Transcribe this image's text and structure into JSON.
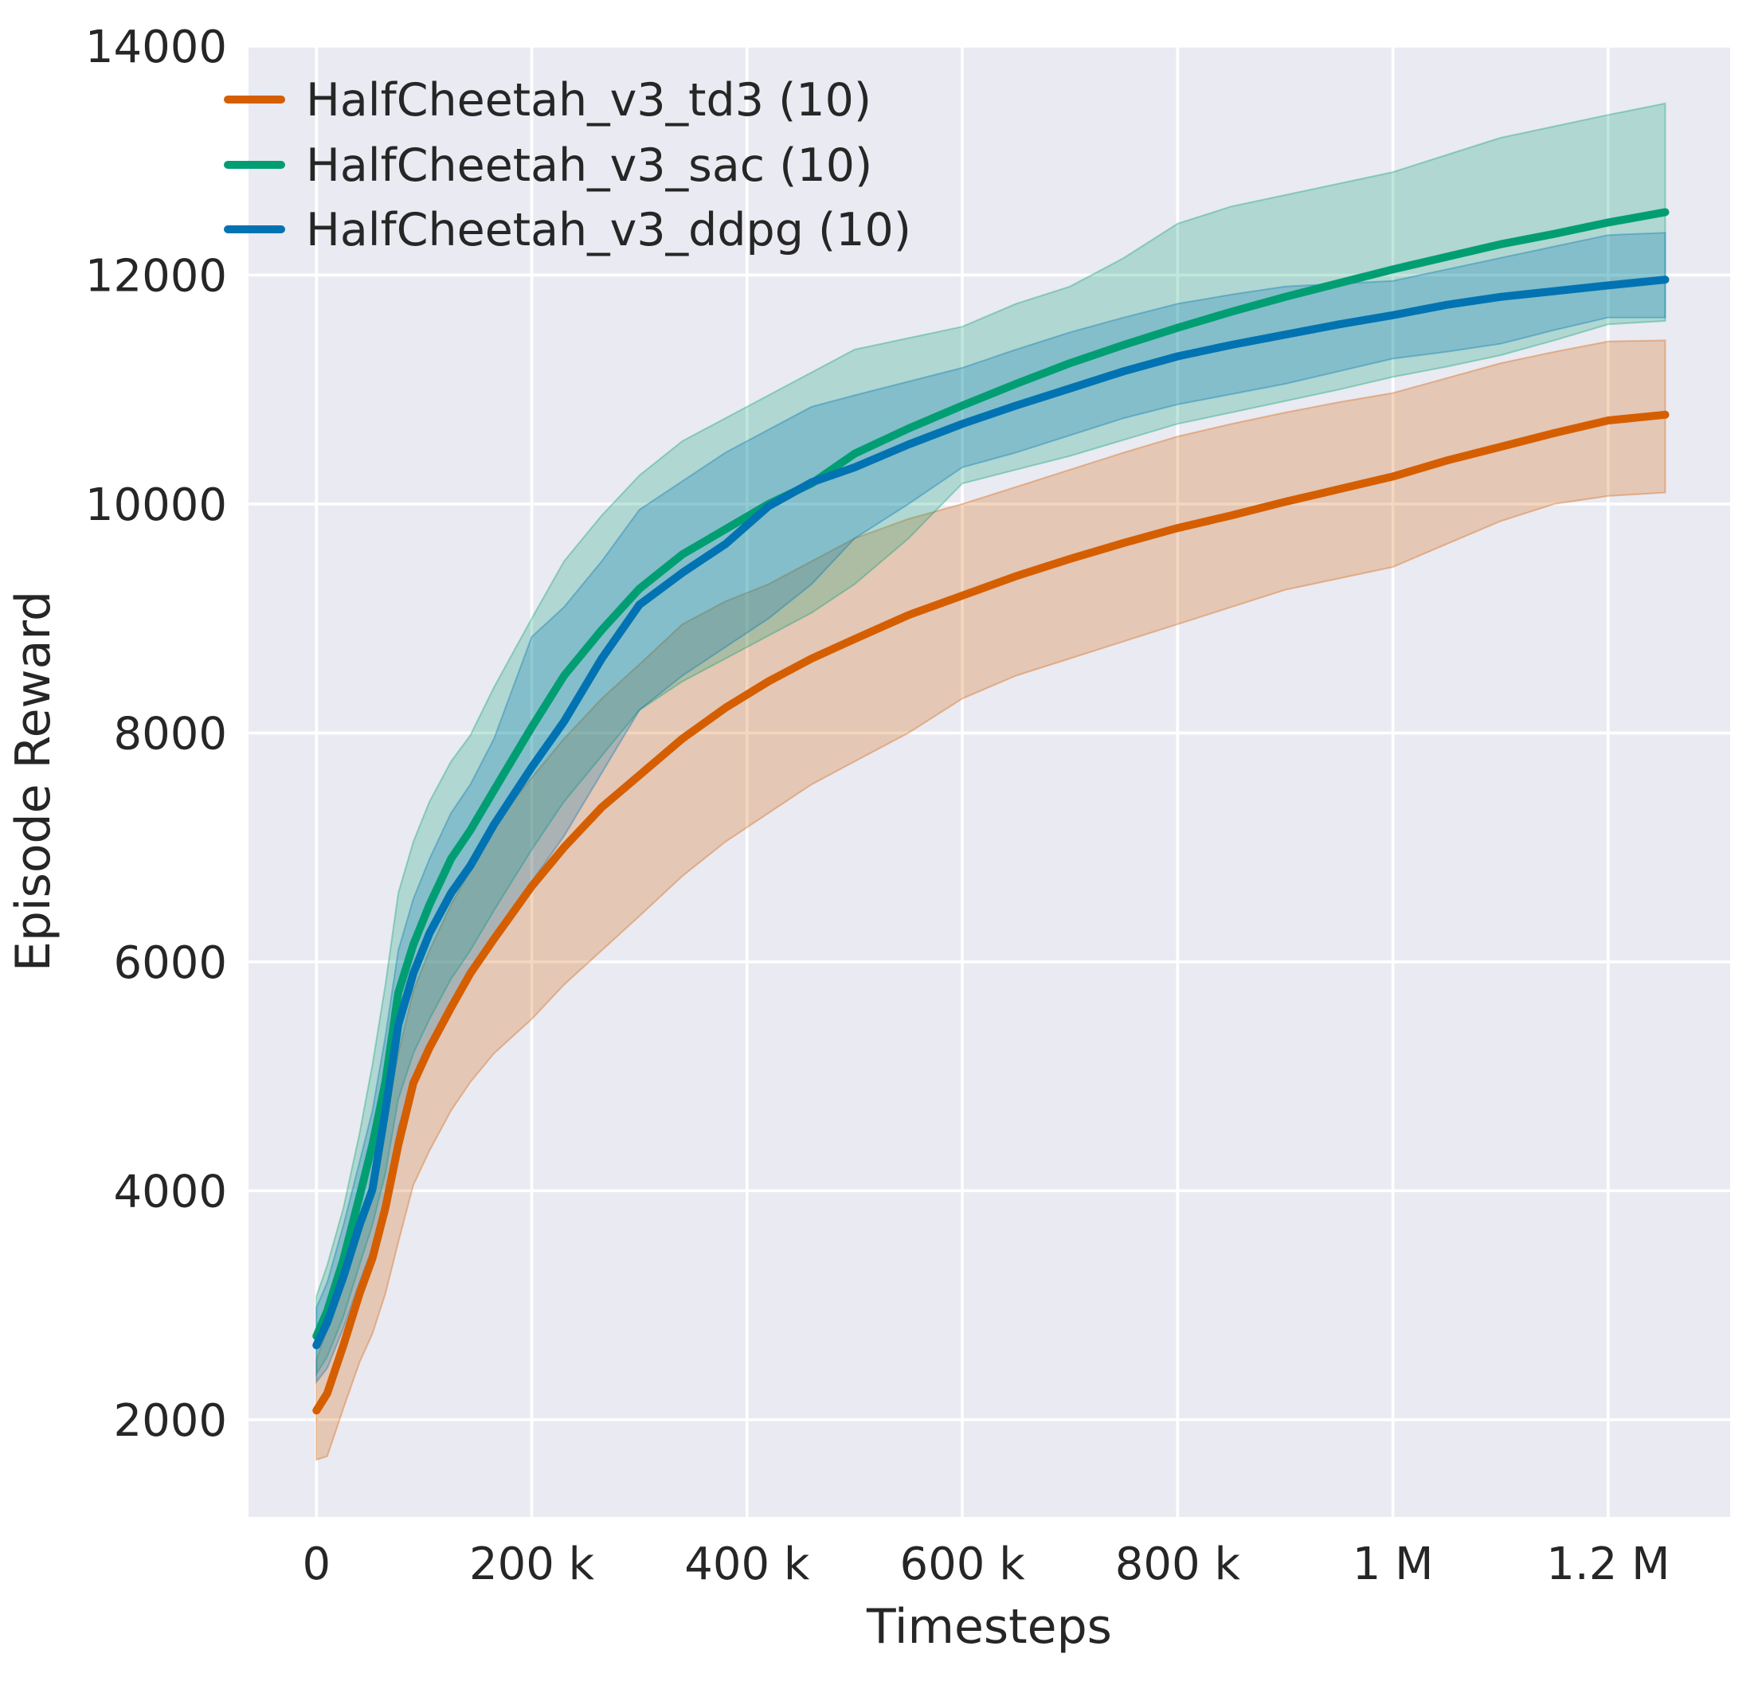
{
  "chart_data": {
    "type": "line",
    "title": "",
    "xlabel": "Timesteps",
    "ylabel": "Episode Reward",
    "grid": true,
    "legend_position": "upper-left",
    "plot_bg_color": "#eaeaf2",
    "grid_color": "#ffffff",
    "text_color": "#262626",
    "figure_bg_color": "#ffffff",
    "xlim": [
      -63100,
      1313300
    ],
    "ylim": [
      1150,
      14000
    ],
    "xticks": [
      {
        "value": 0,
        "label": "0"
      },
      {
        "value": 200000,
        "label": "200 k"
      },
      {
        "value": 400000,
        "label": "400 k"
      },
      {
        "value": 600000,
        "label": "600 k"
      },
      {
        "value": 800000,
        "label": "800 k"
      },
      {
        "value": 1000000,
        "label": "1 M"
      },
      {
        "value": 1200000,
        "label": "1.2 M"
      }
    ],
    "yticks": [
      {
        "value": 2000,
        "label": "2000"
      },
      {
        "value": 4000,
        "label": "4000"
      },
      {
        "value": 6000,
        "label": "6000"
      },
      {
        "value": 8000,
        "label": "8000"
      },
      {
        "value": 10000,
        "label": "10000"
      },
      {
        "value": 12000,
        "label": "12000"
      },
      {
        "value": 14000,
        "label": "14000"
      }
    ],
    "x_steps": [
      0,
      10000,
      25000,
      40000,
      52000,
      64000,
      76000,
      90000,
      105000,
      125000,
      143000,
      165000,
      200000,
      230000,
      265000,
      300000,
      340000,
      380000,
      420000,
      460000,
      500000,
      550000,
      600000,
      650000,
      700000,
      750000,
      800000,
      850000,
      900000,
      950000,
      1000000,
      1050000,
      1100000,
      1150000,
      1200000,
      1253000
    ],
    "series": [
      {
        "key": "td3",
        "name": "HalfCheetah_v3_td3 (10)",
        "color": "#d55e00",
        "y": [
          2080,
          2230,
          2650,
          3100,
          3410,
          3850,
          4400,
          4940,
          5250,
          5600,
          5900,
          6200,
          6660,
          7000,
          7350,
          7630,
          7950,
          8220,
          8450,
          8650,
          8820,
          9030,
          9200,
          9370,
          9520,
          9660,
          9790,
          9900,
          10020,
          10130,
          10240,
          10380,
          10500,
          10620,
          10730,
          10780
        ],
        "band_lo": [
          1650,
          1680,
          2100,
          2500,
          2750,
          3100,
          3550,
          4050,
          4350,
          4700,
          4950,
          5200,
          5500,
          5800,
          6100,
          6400,
          6750,
          7050,
          7300,
          7550,
          7750,
          8000,
          8300,
          8500,
          8650,
          8800,
          8950,
          9100,
          9250,
          9350,
          9450,
          9650,
          9850,
          10000,
          10070,
          10100
        ],
        "band_hi": [
          2520,
          2800,
          3250,
          3750,
          4100,
          4600,
          5200,
          5750,
          6100,
          6500,
          6800,
          7200,
          7610,
          7950,
          8300,
          8600,
          8950,
          9150,
          9300,
          9500,
          9700,
          9870,
          10000,
          10150,
          10300,
          10450,
          10590,
          10700,
          10800,
          10890,
          10970,
          11100,
          11230,
          11330,
          11420,
          11430
        ]
      },
      {
        "key": "sac",
        "name": "HalfCheetah_v3_sac (10)",
        "color": "#029e73",
        "y": [
          2730,
          2950,
          3400,
          3950,
          4400,
          4950,
          5730,
          6150,
          6500,
          6900,
          7150,
          7500,
          8050,
          8500,
          8900,
          9260,
          9560,
          9780,
          10000,
          10180,
          10440,
          10660,
          10860,
          11050,
          11230,
          11390,
          11540,
          11680,
          11810,
          11930,
          12050,
          12160,
          12270,
          12360,
          12460,
          12550
        ],
        "band_lo": [
          2400,
          2550,
          2900,
          3350,
          3700,
          4150,
          4800,
          5200,
          5500,
          5850,
          6100,
          6450,
          6980,
          7400,
          7800,
          8200,
          8450,
          8650,
          8850,
          9050,
          9300,
          9700,
          10180,
          10300,
          10420,
          10560,
          10700,
          10800,
          10900,
          11000,
          11110,
          11200,
          11300,
          11430,
          11570,
          11600
        ],
        "band_hi": [
          3080,
          3350,
          3850,
          4500,
          5100,
          5800,
          6600,
          7050,
          7400,
          7750,
          7980,
          8400,
          9000,
          9500,
          9900,
          10250,
          10550,
          10750,
          10950,
          11150,
          11350,
          11450,
          11550,
          11750,
          11900,
          12150,
          12450,
          12600,
          12700,
          12800,
          12900,
          13050,
          13200,
          13300,
          13400,
          13500
        ]
      },
      {
        "key": "ddpg",
        "name": "HalfCheetah_v3_ddpg (10)",
        "color": "#0173b2",
        "y": [
          2650,
          2850,
          3250,
          3700,
          4010,
          4700,
          5450,
          5900,
          6250,
          6600,
          6840,
          7200,
          7700,
          8100,
          8650,
          9120,
          9400,
          9650,
          9980,
          10190,
          10320,
          10520,
          10700,
          10860,
          11010,
          11160,
          11290,
          11390,
          11480,
          11570,
          11650,
          11740,
          11810,
          11860,
          11910,
          11960
        ],
        "band_lo": [
          2330,
          2450,
          2800,
          3200,
          3500,
          3950,
          4550,
          4950,
          5250,
          5600,
          5850,
          6200,
          6700,
          7100,
          7650,
          8200,
          8500,
          8750,
          9000,
          9300,
          9700,
          10000,
          10320,
          10450,
          10600,
          10750,
          10870,
          10960,
          11050,
          11160,
          11270,
          11330,
          11400,
          11520,
          11630,
          11630
        ],
        "band_hi": [
          2980,
          3200,
          3700,
          4250,
          4700,
          5350,
          6100,
          6550,
          6900,
          7300,
          7550,
          7950,
          8840,
          9100,
          9500,
          9950,
          10200,
          10450,
          10650,
          10850,
          10950,
          11070,
          11190,
          11350,
          11500,
          11630,
          11750,
          11830,
          11900,
          11925,
          11950,
          12050,
          12150,
          12250,
          12350,
          12370
        ]
      }
    ]
  }
}
